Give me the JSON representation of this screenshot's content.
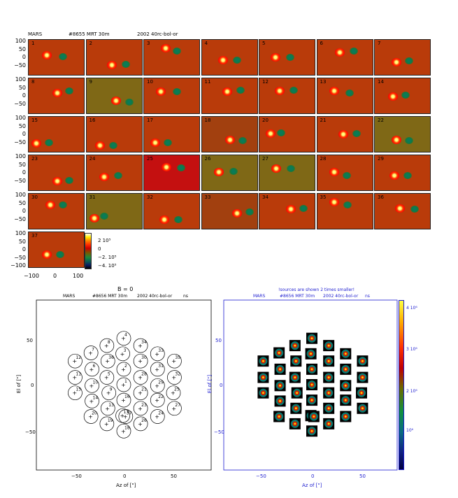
{
  "header": {
    "planet": "MARS",
    "scan": "#8655 MRT 30m",
    "camera": "2002 40rc-bol-or"
  },
  "grid": {
    "y_ticks": [
      "100",
      "50",
      "0",
      "−50",
      "−100"
    ],
    "x_ticks": [
      "−100",
      "0",
      "100"
    ],
    "panels": [
      {
        "n": "1",
        "bg": "#b93b0a",
        "hot": [
          0.32,
          0.42
        ],
        "cold": [
          0.6,
          0.46
        ]
      },
      {
        "n": "2",
        "bg": "#b93b0a",
        "hot": [
          0.45,
          0.7
        ],
        "cold": [
          0.7,
          0.68
        ]
      },
      {
        "n": "3",
        "bg": "#b93b0a",
        "hot": [
          0.38,
          0.24
        ],
        "cold": [
          0.58,
          0.3
        ]
      },
      {
        "n": "4",
        "bg": "#b93b0a",
        "hot": [
          0.38,
          0.55
        ],
        "cold": [
          0.62,
          0.55
        ]
      },
      {
        "n": "5",
        "bg": "#b93b0a",
        "hot": [
          0.28,
          0.48
        ],
        "cold": [
          0.54,
          0.48
        ]
      },
      {
        "n": "6",
        "bg": "#b93b0a",
        "hot": [
          0.4,
          0.34
        ],
        "cold": [
          0.65,
          0.3
        ]
      },
      {
        "n": "7",
        "bg": "#b93b0a",
        "hot": [
          0.38,
          0.62
        ],
        "cold": [
          0.6,
          0.58
        ]
      },
      {
        "n": "8",
        "bg": "#b93b0a",
        "hot": [
          0.5,
          0.4
        ],
        "cold": [
          0.72,
          0.34
        ]
      },
      {
        "n": "9",
        "bg": "#7f6816",
        "hot": [
          0.52,
          0.62
        ],
        "cold": [
          0.76,
          0.66
        ]
      },
      {
        "n": "10",
        "bg": "#b93b0a",
        "hot": [
          0.3,
          0.36
        ],
        "cold": [
          0.58,
          0.36
        ]
      },
      {
        "n": "11",
        "bg": "#b93b0a",
        "hot": [
          0.45,
          0.36
        ],
        "cold": [
          0.68,
          0.32
        ]
      },
      {
        "n": "12",
        "bg": "#b93b0a",
        "hot": [
          0.36,
          0.34
        ],
        "cold": [
          0.6,
          0.32
        ]
      },
      {
        "n": "13",
        "bg": "#b93b0a",
        "hot": [
          0.3,
          0.34
        ],
        "cold": [
          0.58,
          0.4
        ]
      },
      {
        "n": "14",
        "bg": "#b93b0a",
        "hot": [
          0.32,
          0.5
        ],
        "cold": [
          0.54,
          0.46
        ]
      },
      {
        "n": "15",
        "bg": "#b93b0a",
        "hot": [
          0.14,
          0.74
        ],
        "cold": [
          0.36,
          0.72
        ]
      },
      {
        "n": "16",
        "bg": "#b93b0a",
        "hot": [
          0.24,
          0.78
        ],
        "cold": [
          0.48,
          0.78
        ]
      },
      {
        "n": "17",
        "bg": "#b93b0a",
        "hot": [
          0.2,
          0.72
        ],
        "cold": [
          0.42,
          0.72
        ]
      },
      {
        "n": "18",
        "bg": "#a2400f",
        "hot": [
          0.5,
          0.64
        ],
        "cold": [
          0.72,
          0.66
        ]
      },
      {
        "n": "20",
        "bg": "#b93b0a",
        "hot": [
          0.2,
          0.46
        ],
        "cold": [
          0.38,
          0.44
        ]
      },
      {
        "n": "21",
        "bg": "#b93b0a",
        "hot": [
          0.46,
          0.48
        ],
        "cold": [
          0.7,
          0.46
        ]
      },
      {
        "n": "22",
        "bg": "#7f6816",
        "hot": [
          0.38,
          0.64
        ],
        "cold": [
          0.6,
          0.66
        ]
      },
      {
        "n": "23",
        "bg": "#b93b0a",
        "hot": [
          0.5,
          0.72
        ],
        "cold": [
          0.72,
          0.7
        ]
      },
      {
        "n": "24",
        "bg": "#b93b0a",
        "hot": [
          0.32,
          0.6
        ],
        "cold": [
          0.56,
          0.56
        ]
      },
      {
        "n": "25",
        "bg": "#c41010",
        "hot": [
          0.4,
          0.32
        ],
        "cold": [
          0.65,
          0.34
        ]
      },
      {
        "n": "26",
        "bg": "#7f6816",
        "hot": [
          0.3,
          0.46
        ],
        "cold": [
          0.56,
          0.44
        ]
      },
      {
        "n": "27",
        "bg": "#7f6816",
        "hot": [
          0.3,
          0.36
        ],
        "cold": [
          0.55,
          0.36
        ]
      },
      {
        "n": "28",
        "bg": "#b93b0a",
        "hot": [
          0.3,
          0.46
        ],
        "cold": [
          0.52,
          0.56
        ]
      },
      {
        "n": "29",
        "bg": "#b93b0a",
        "hot": [
          0.34,
          0.56
        ],
        "cold": [
          0.58,
          0.56
        ]
      },
      {
        "n": "30",
        "bg": "#b93b0a",
        "hot": [
          0.38,
          0.3
        ],
        "cold": [
          0.6,
          0.3
        ]
      },
      {
        "n": "31",
        "bg": "#7f6816",
        "hot": [
          0.14,
          0.68
        ],
        "cold": [
          0.32,
          0.62
        ]
      },
      {
        "n": "32",
        "bg": "#b93b0a",
        "hot": [
          0.36,
          0.72
        ],
        "cold": [
          0.6,
          0.72
        ]
      },
      {
        "n": "33",
        "bg": "#a2400f",
        "hot": [
          0.62,
          0.54
        ],
        "cold": [
          0.84,
          0.5
        ]
      },
      {
        "n": "34",
        "bg": "#b93b0a",
        "hot": [
          0.56,
          0.42
        ],
        "cold": [
          0.78,
          0.4
        ]
      },
      {
        "n": "35",
        "bg": "#b93b0a",
        "hot": [
          0.3,
          0.24
        ],
        "cold": [
          0.54,
          0.3
        ]
      },
      {
        "n": "36",
        "bg": "#b93b0a",
        "hot": [
          0.44,
          0.4
        ],
        "cold": [
          0.7,
          0.42
        ]
      },
      {
        "n": "37",
        "bg": "#b93b0a",
        "hot": [
          0.32,
          0.62
        ],
        "cold": [
          0.56,
          0.62
        ]
      }
    ]
  },
  "colorbar_small": {
    "labels": [
      "2 10⁵",
      "0",
      "−2. 10⁵",
      "−4. 10⁵"
    ]
  },
  "beam_map": {
    "title_top": "B = 0",
    "header_planet": "MARS",
    "header_scan": "#8656 MRT 30m",
    "header_camera": "2002 40rc-bol-or",
    "header_tag": "ns",
    "xlabel": "Az of [\"]",
    "ylabel": "El of [\"]",
    "x_ticks": [
      "−50",
      "0",
      "50"
    ],
    "y_ticks": [
      "50",
      "0",
      "−50"
    ]
  },
  "beam_image": {
    "note": "!sources are shown 2 times smaller!",
    "header_planet": "MARS",
    "header_scan": "#8656 MRT 30m",
    "header_camera": "2002 40rc-bol-or",
    "header_tag": "ns",
    "xlabel": "Az of [\"]",
    "ylabel": "El of [\"]",
    "x_ticks": [
      "−50",
      "0",
      "50"
    ],
    "y_ticks": [
      "50",
      "0",
      "−50"
    ],
    "colorbar_labels": [
      "4 10⁶",
      "3 10⁶",
      "2 10⁶",
      "10⁶"
    ]
  },
  "beams": [
    {
      "n": "1",
      "az": 0,
      "el": 0
    },
    {
      "n": "2",
      "az": 0,
      "el": 17
    },
    {
      "n": "3",
      "az": -1,
      "el": 34
    },
    {
      "n": "4",
      "az": 0,
      "el": 51
    },
    {
      "n": "5",
      "az": -17,
      "el": 8
    },
    {
      "n": "6",
      "az": -32,
      "el": 17
    },
    {
      "n": "7",
      "az": -33,
      "el": 35
    },
    {
      "n": "8",
      "az": -17,
      "el": 43
    },
    {
      "n": "9",
      "az": -15,
      "el": -9
    },
    {
      "n": "10",
      "az": -32,
      "el": -1
    },
    {
      "n": "11",
      "az": -49,
      "el": 8
    },
    {
      "n": "12",
      "az": -49,
      "el": 26
    },
    {
      "n": "13",
      "az": -16,
      "el": -26
    },
    {
      "n": "14",
      "az": -32,
      "el": -18
    },
    {
      "n": "15",
      "az": -49,
      "el": -9
    },
    {
      "n": "16",
      "az": 0,
      "el": -17
    },
    {
      "n": "17",
      "az": -1,
      "el": -34
    },
    {
      "n": "18",
      "az": 0,
      "el": -51
    },
    {
      "n": "19",
      "az": -17,
      "el": -43
    },
    {
      "n": "20",
      "az": -33,
      "el": -35
    },
    {
      "n": "21",
      "az": 17,
      "el": -9
    },
    {
      "n": "22",
      "az": 34,
      "el": -17
    },
    {
      "n": "23",
      "az": 17,
      "el": -26
    },
    {
      "n": "24",
      "az": 34,
      "el": -35
    },
    {
      "n": "25",
      "az": 50,
      "el": -9
    },
    {
      "n": "26",
      "az": 17,
      "el": -43
    },
    {
      "n": "27",
      "az": 51,
      "el": -26
    },
    {
      "n": "28",
      "az": 17,
      "el": 8
    },
    {
      "n": "29",
      "az": 34,
      "el": -1
    },
    {
      "n": "30",
      "az": 17,
      "el": 26
    },
    {
      "n": "31",
      "az": 34,
      "el": 17
    },
    {
      "n": "32",
      "az": 51,
      "el": 8
    },
    {
      "n": "33",
      "az": 34,
      "el": 34
    },
    {
      "n": "34",
      "az": 17,
      "el": 43
    },
    {
      "n": "35",
      "az": 51,
      "el": 26
    },
    {
      "n": "36",
      "az": -16,
      "el": 26
    },
    {
      "n": "37",
      "az": 2,
      "el": -35
    }
  ]
}
